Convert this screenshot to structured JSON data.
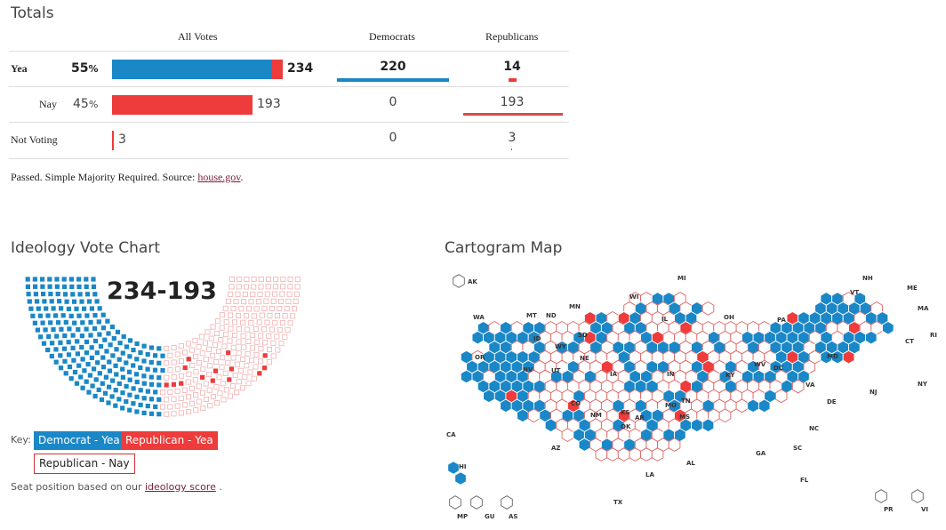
{
  "totals": {
    "title": "Totals",
    "headers": {
      "all": "All Votes",
      "dem": "Democrats",
      "rep": "Republicans"
    },
    "rows": [
      {
        "label": "Yea",
        "pct": "55",
        "pct_sign": "%",
        "total": "234",
        "dem": "220",
        "rep": "14",
        "dem_fraction": 0.94,
        "rep_fraction": 0.06
      },
      {
        "label": "Nay",
        "pct": "45",
        "pct_sign": "%",
        "total": "193",
        "dem": "0",
        "rep": "193",
        "dem_fraction": 0,
        "rep_fraction": 1
      },
      {
        "label": "Not Voting",
        "pct": "",
        "pct_sign": "",
        "total": "3",
        "dem": "0",
        "rep": "3",
        "dem_fraction": 0,
        "rep_fraction": 0.02
      }
    ],
    "yea_dem": 220,
    "yea_rep": 14,
    "nay": 193,
    "not_voting": 3
  },
  "note": {
    "text": "Passed. Simple Majority Required. Source: ",
    "link": "house.gov",
    "end": "."
  },
  "ideology": {
    "title": "Ideology Vote Chart",
    "score": "234-193",
    "key_label": "Key:",
    "keys": [
      "Democrat - Yea",
      "Republican - Yea",
      "Republican - Nay"
    ],
    "seat_note_pre": "Seat position based on our ",
    "seat_note_link": "ideology score",
    "seat_note_post": " ."
  },
  "map": {
    "title": "Cartogram Map",
    "states": [
      "AK",
      "WA",
      "MT",
      "ND",
      "MN",
      "WI",
      "MI",
      "OR",
      "ID",
      "WY",
      "SD",
      "NE",
      "IA",
      "IL",
      "IN",
      "OH",
      "PA",
      "NY",
      "VT",
      "NH",
      "ME",
      "MA",
      "RI",
      "CT",
      "NJ",
      "DE",
      "MD",
      "WV",
      "VA",
      "DC",
      "KY",
      "TN",
      "NC",
      "SC",
      "GA",
      "AL",
      "MS",
      "LA",
      "AR",
      "MO",
      "KS",
      "OK",
      "TX",
      "NM",
      "CO",
      "UT",
      "NV",
      "CA",
      "AZ",
      "HI",
      "FL",
      "MP",
      "GU",
      "AS",
      "PR",
      "VI"
    ]
  },
  "colors": {
    "dem": "#1a87c7",
    "rep": "#ee3b3b",
    "rep_nay_fill": "#ffffff",
    "rep_nay_stroke": "#e26a6a",
    "link": "#7a1f3d"
  }
}
